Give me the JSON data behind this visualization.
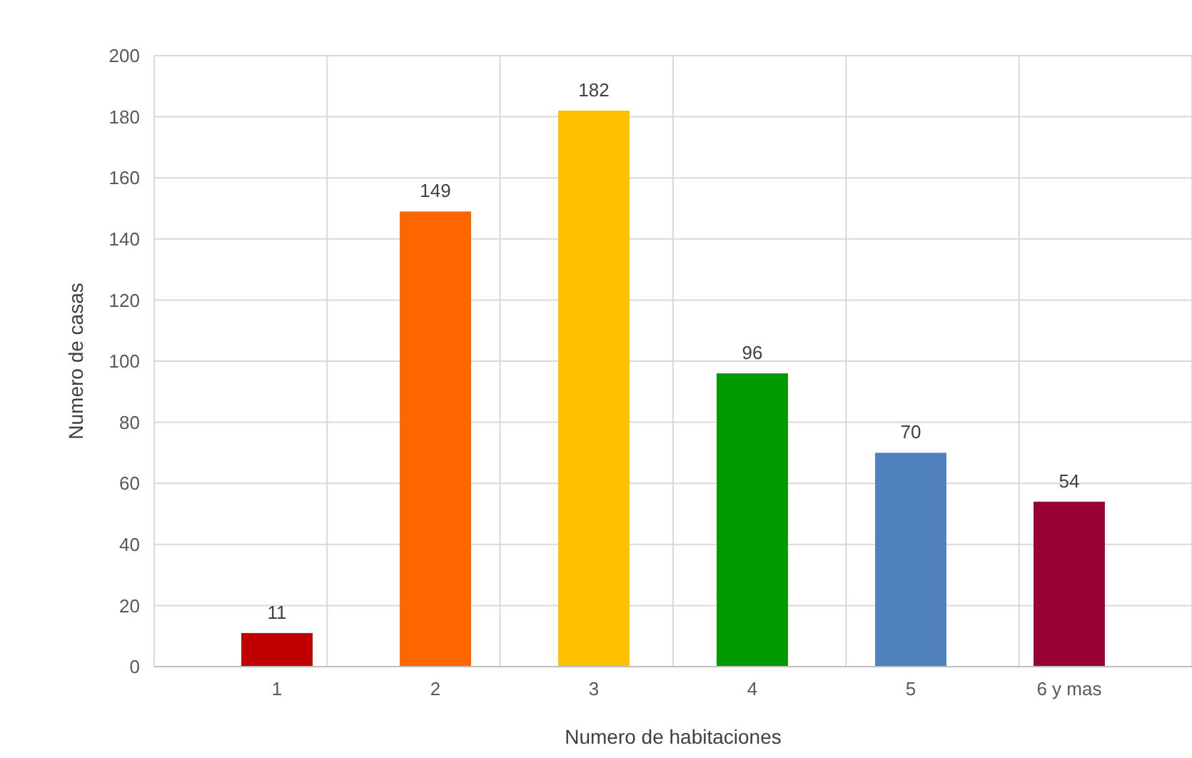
{
  "chart_data": {
    "type": "bar",
    "xlabel": "Numero de habitaciones",
    "ylabel": "Numero de casas",
    "categories": [
      "1",
      "2",
      "3",
      "4",
      "5",
      "6 y mas"
    ],
    "values": [
      11,
      149,
      182,
      96,
      70,
      54
    ],
    "colors": [
      "#c00000",
      "#ff6600",
      "#ffc000",
      "#009900",
      "#4f81bd",
      "#990033"
    ],
    "ylim": [
      0,
      200
    ],
    "yticks": [
      0,
      20,
      40,
      60,
      80,
      100,
      120,
      140,
      160,
      180,
      200
    ],
    "grid": true,
    "data_labels": true
  }
}
